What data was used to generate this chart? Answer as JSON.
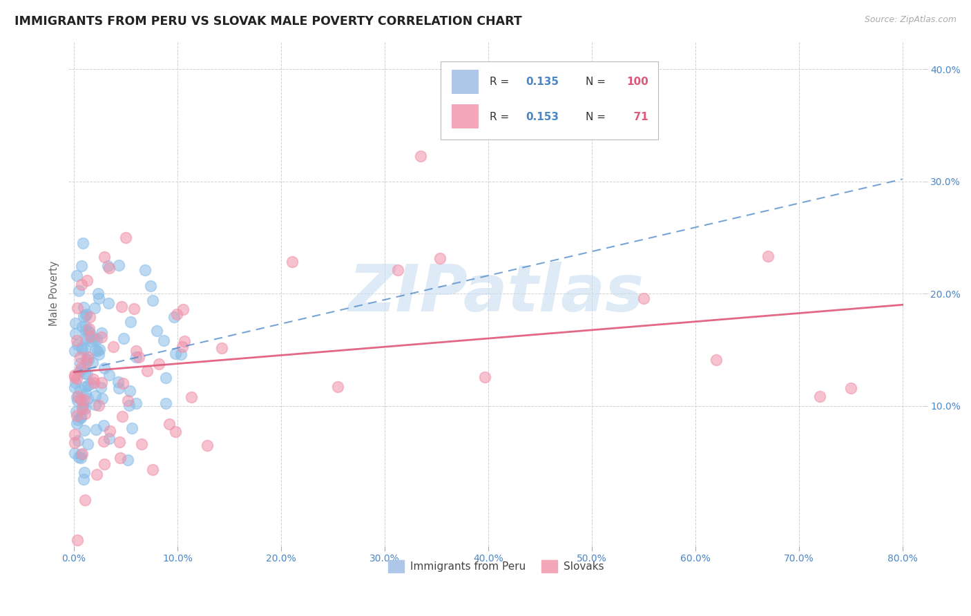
{
  "title": "IMMIGRANTS FROM PERU VS SLOVAK MALE POVERTY CORRELATION CHART",
  "source": "Source: ZipAtlas.com",
  "ylabel": "Male Poverty",
  "x_min": -0.005,
  "x_max": 0.82,
  "y_min": -0.025,
  "y_max": 0.425,
  "blue_line_y_intercept": 0.13,
  "blue_line_slope": 0.215,
  "pink_line_y_intercept": 0.13,
  "pink_line_slope": 0.075,
  "watermark_text": "ZIPatlas",
  "bg_color": "#ffffff",
  "grid_color": "#d0d0d0",
  "title_color": "#222222",
  "blue_color": "#89bde8",
  "blue_line_color": "#4a86c8",
  "pink_color": "#f090a8",
  "pink_line_color": "#e05878",
  "tick_label_color": "#4a86c8",
  "legend_r_color": "#222222",
  "legend_rv_color": "#4a86c8",
  "legend_n_color": "#222222",
  "legend_nv_color": "#e05878"
}
